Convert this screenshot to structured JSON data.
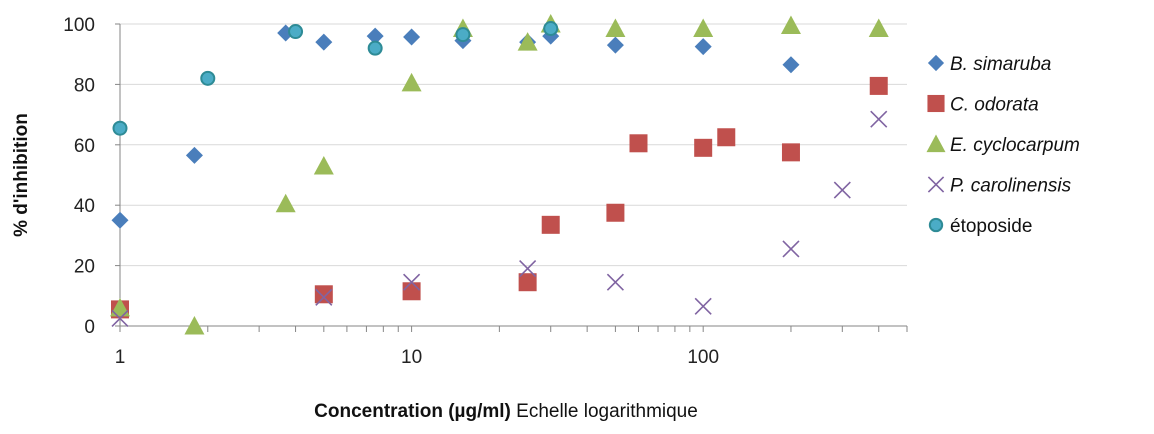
{
  "chart_data": {
    "type": "scatter",
    "title": "",
    "xlabel": {
      "bold": "Concentration (µg/ml)",
      "normal": " Echelle logarithmique"
    },
    "ylabel": "% d'inhibition",
    "xscale": "log",
    "xlim": [
      1,
      500
    ],
    "ylim": [
      0,
      100
    ],
    "x_ticks": [
      {
        "value": 1,
        "label": "1"
      },
      {
        "value": 10,
        "label": "10"
      },
      {
        "value": 100,
        "label": "100"
      }
    ],
    "y_ticks": [
      {
        "value": 0,
        "label": "0"
      },
      {
        "value": 20,
        "label": "20"
      },
      {
        "value": 40,
        "label": "40"
      },
      {
        "value": 60,
        "label": "60"
      },
      {
        "value": 80,
        "label": "80"
      },
      {
        "value": 100,
        "label": "100"
      }
    ],
    "grid": "horizontal",
    "legend_position": "right",
    "series": [
      {
        "name": "B. simaruba",
        "italic": true,
        "marker": "diamond",
        "color": "#4a7ebb",
        "points": [
          [
            1,
            35
          ],
          [
            1.8,
            56.5
          ],
          [
            3.7,
            97
          ],
          [
            5,
            94
          ],
          [
            7.5,
            96
          ],
          [
            10,
            95.7
          ],
          [
            15,
            94.5
          ],
          [
            25,
            94
          ],
          [
            30,
            96
          ],
          [
            50,
            93
          ],
          [
            100,
            92.5
          ],
          [
            200,
            86.5
          ]
        ]
      },
      {
        "name": "C. odorata",
        "italic": true,
        "marker": "square",
        "color": "#c0504d",
        "points": [
          [
            1,
            5.5
          ],
          [
            5,
            10.5
          ],
          [
            10,
            11.5
          ],
          [
            25,
            14.5
          ],
          [
            30,
            33.5
          ],
          [
            50,
            37.5
          ],
          [
            60,
            60.5
          ],
          [
            100,
            59
          ],
          [
            120,
            62.5
          ],
          [
            200,
            57.5
          ],
          [
            400,
            79.5
          ]
        ]
      },
      {
        "name": "E. cyclocarpum",
        "italic": true,
        "marker": "triangle",
        "color": "#9bbb59",
        "points": [
          [
            1,
            6
          ],
          [
            1.8,
            0
          ],
          [
            3.7,
            40.5
          ],
          [
            5,
            53
          ],
          [
            10,
            80.5
          ],
          [
            15,
            98.5
          ],
          [
            25,
            94
          ],
          [
            30,
            100
          ],
          [
            50,
            98.5
          ],
          [
            100,
            98.5
          ],
          [
            200,
            99.5
          ],
          [
            400,
            98.5
          ]
        ]
      },
      {
        "name": "P. carolinensis",
        "italic": true,
        "marker": "x",
        "color": "#8064a2",
        "points": [
          [
            1,
            2.5
          ],
          [
            5,
            9.5
          ],
          [
            10,
            14.5
          ],
          [
            25,
            19
          ],
          [
            50,
            14.5
          ],
          [
            100,
            6.5
          ],
          [
            200,
            25.5
          ],
          [
            300,
            45
          ],
          [
            400,
            68.5
          ]
        ]
      },
      {
        "name": "étoposide",
        "italic": false,
        "marker": "circle",
        "color": "#4bacc6",
        "edge_color": "#2e8b96",
        "points": [
          [
            1,
            65.5
          ],
          [
            2,
            82
          ],
          [
            4,
            97.5
          ],
          [
            7.5,
            92
          ],
          [
            15,
            96.5
          ],
          [
            30,
            98.5
          ]
        ]
      }
    ]
  }
}
